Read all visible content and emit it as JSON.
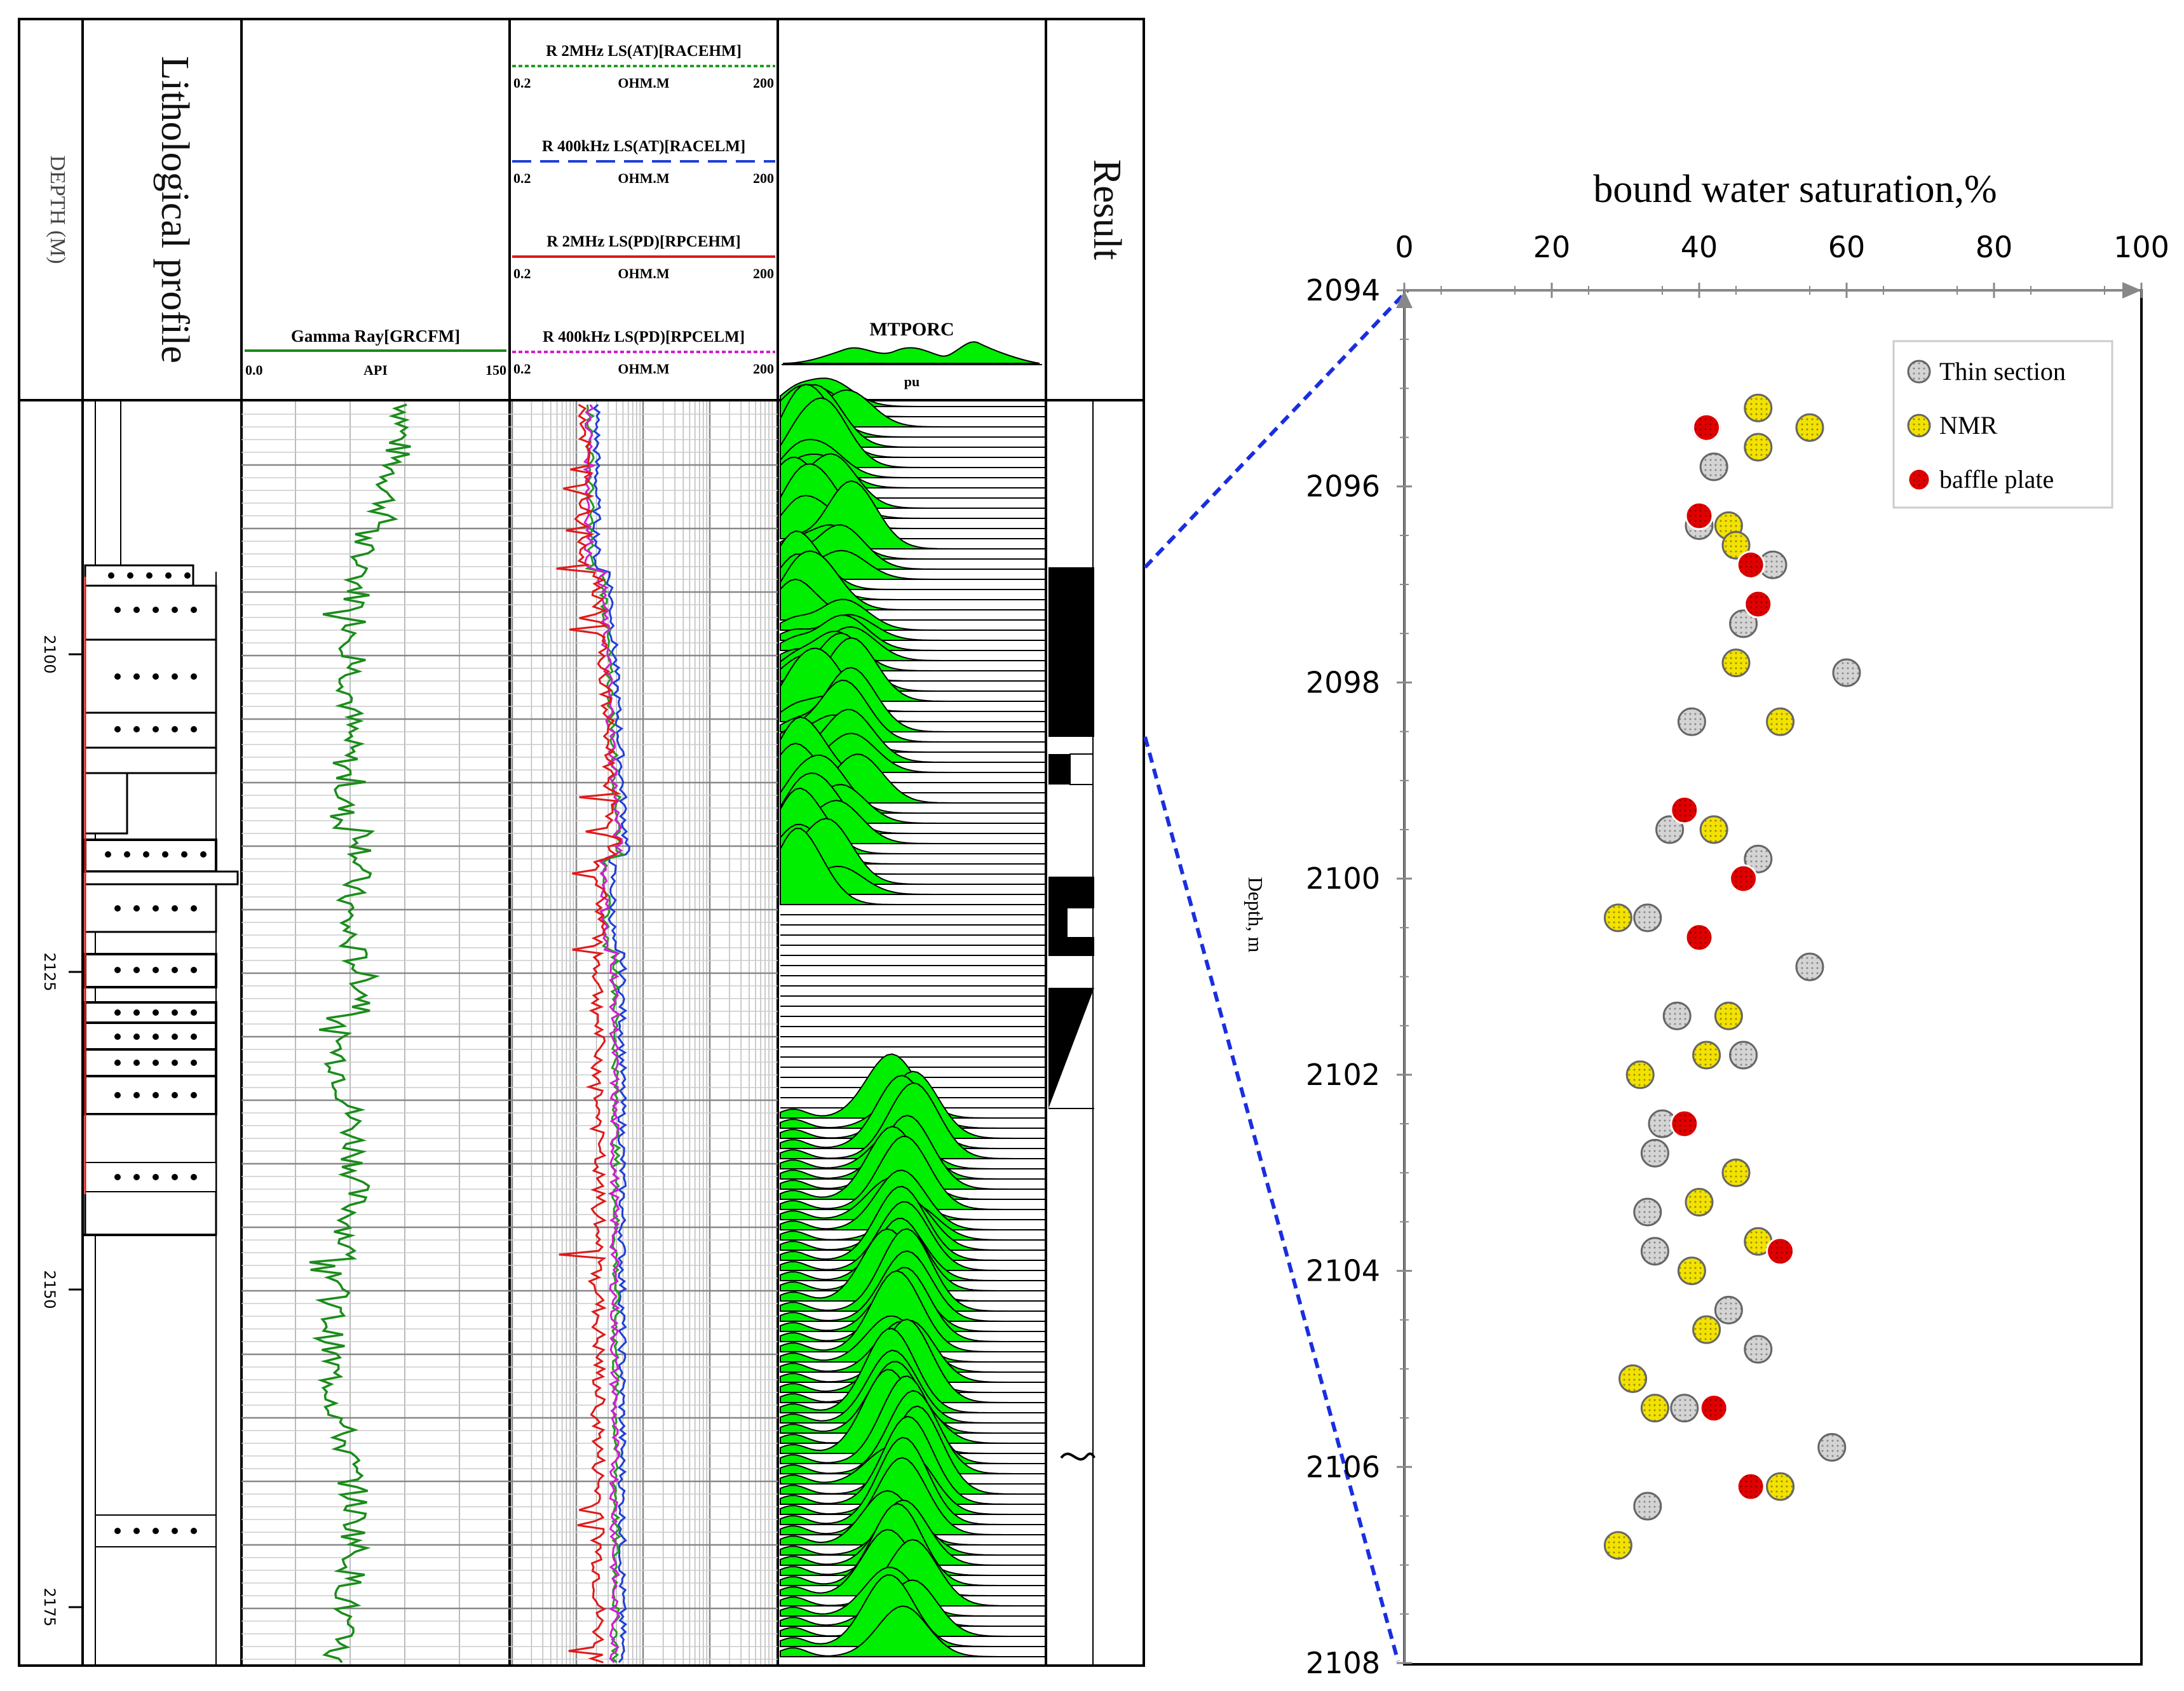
{
  "colors": {
    "gamma": "#1a8c1a",
    "res_green": "#1f9d1f",
    "res_blue": "#1f3fd9",
    "res_red": "#e01919",
    "res_magenta": "#d11dd1",
    "mtporc_fill": "#00ee00",
    "thin_section": "#d4d4d4",
    "nmr": "#f2e200",
    "baffle": "#e00000",
    "zoom_line": "#1a2ee0"
  },
  "log_panel": {
    "depth_header": "DEPTH (M)",
    "litho_header": "Lithological profile",
    "result_header": "Result",
    "gamma": {
      "label": "Gamma Ray[GRCFM]",
      "min": "0.0",
      "unit": "API",
      "max": "150"
    },
    "resistivity": [
      {
        "label": "R 2MHz LS(AT)[RACEHM]",
        "min": "0.2",
        "unit": "OHM.M",
        "max": "200"
      },
      {
        "label": "R 400kHz LS(AT)[RACELM]",
        "min": "0.2",
        "unit": "OHM.M",
        "max": "200"
      },
      {
        "label": "R 2MHz LS(PD)[RPCEHM]",
        "min": "0.2",
        "unit": "OHM.M",
        "max": "200"
      },
      {
        "label": "R 400kHz LS(PD)[RPCELM]",
        "min": "0.2",
        "unit": "OHM.M",
        "max": "200"
      }
    ],
    "mtporc": {
      "label": "MTPORC",
      "unit": "pu"
    },
    "depth_ticks": [
      "2100",
      "2125",
      "2150",
      "2175"
    ]
  },
  "chart_data": {
    "type": "scatter",
    "title": "bound water saturation,%",
    "xlabel": "bound water saturation,%",
    "ylabel": "Depth, m",
    "xlim": [
      0,
      100
    ],
    "ylim": [
      2094,
      2108
    ],
    "xticks": [
      "0",
      "20",
      "40",
      "60",
      "80",
      "100"
    ],
    "yticks": [
      "2094",
      "2096",
      "2098",
      "2100",
      "2102",
      "2104",
      "2106",
      "2108"
    ],
    "legend_position": "top-right",
    "series": [
      {
        "name": "Thin section",
        "points": [
          {
            "x": 41,
            "y": 2095.4
          },
          {
            "x": 42,
            "y": 2095.8
          },
          {
            "x": 40,
            "y": 2096.4
          },
          {
            "x": 50,
            "y": 2096.8
          },
          {
            "x": 46,
            "y": 2097.4
          },
          {
            "x": 60,
            "y": 2097.9
          },
          {
            "x": 39,
            "y": 2098.4
          },
          {
            "x": 36,
            "y": 2099.5
          },
          {
            "x": 48,
            "y": 2099.8
          },
          {
            "x": 33,
            "y": 2100.4
          },
          {
            "x": 55,
            "y": 2100.9
          },
          {
            "x": 37,
            "y": 2101.4
          },
          {
            "x": 46,
            "y": 2101.8
          },
          {
            "x": 35,
            "y": 2102.5
          },
          {
            "x": 34,
            "y": 2102.8
          },
          {
            "x": 33,
            "y": 2103.4
          },
          {
            "x": 34,
            "y": 2103.8
          },
          {
            "x": 44,
            "y": 2104.4
          },
          {
            "x": 48,
            "y": 2104.8
          },
          {
            "x": 38,
            "y": 2105.4
          },
          {
            "x": 58,
            "y": 2105.8
          },
          {
            "x": 33,
            "y": 2106.4
          }
        ]
      },
      {
        "name": "NMR",
        "points": [
          {
            "x": 48,
            "y": 2095.2
          },
          {
            "x": 55,
            "y": 2095.4
          },
          {
            "x": 48,
            "y": 2095.6
          },
          {
            "x": 44,
            "y": 2096.4
          },
          {
            "x": 45,
            "y": 2096.6
          },
          {
            "x": 45,
            "y": 2097.8
          },
          {
            "x": 51,
            "y": 2098.4
          },
          {
            "x": 42,
            "y": 2099.5
          },
          {
            "x": 29,
            "y": 2100.4
          },
          {
            "x": 44,
            "y": 2101.4
          },
          {
            "x": 41,
            "y": 2101.8
          },
          {
            "x": 32,
            "y": 2102.0
          },
          {
            "x": 45,
            "y": 2103.0
          },
          {
            "x": 40,
            "y": 2103.3
          },
          {
            "x": 48,
            "y": 2103.7
          },
          {
            "x": 39,
            "y": 2104.0
          },
          {
            "x": 41,
            "y": 2104.6
          },
          {
            "x": 31,
            "y": 2105.1
          },
          {
            "x": 34,
            "y": 2105.4
          },
          {
            "x": 51,
            "y": 2106.2
          },
          {
            "x": 29,
            "y": 2106.8
          }
        ]
      },
      {
        "name": "baffle plate",
        "points": [
          {
            "x": 41,
            "y": 2095.4
          },
          {
            "x": 40,
            "y": 2096.3
          },
          {
            "x": 47,
            "y": 2096.8
          },
          {
            "x": 48,
            "y": 2097.2
          },
          {
            "x": 38,
            "y": 2099.3
          },
          {
            "x": 46,
            "y": 2100.0
          },
          {
            "x": 40,
            "y": 2100.6
          },
          {
            "x": 38,
            "y": 2102.5
          },
          {
            "x": 51,
            "y": 2103.8
          },
          {
            "x": 42,
            "y": 2105.4
          },
          {
            "x": 47,
            "y": 2106.2
          }
        ]
      }
    ]
  }
}
